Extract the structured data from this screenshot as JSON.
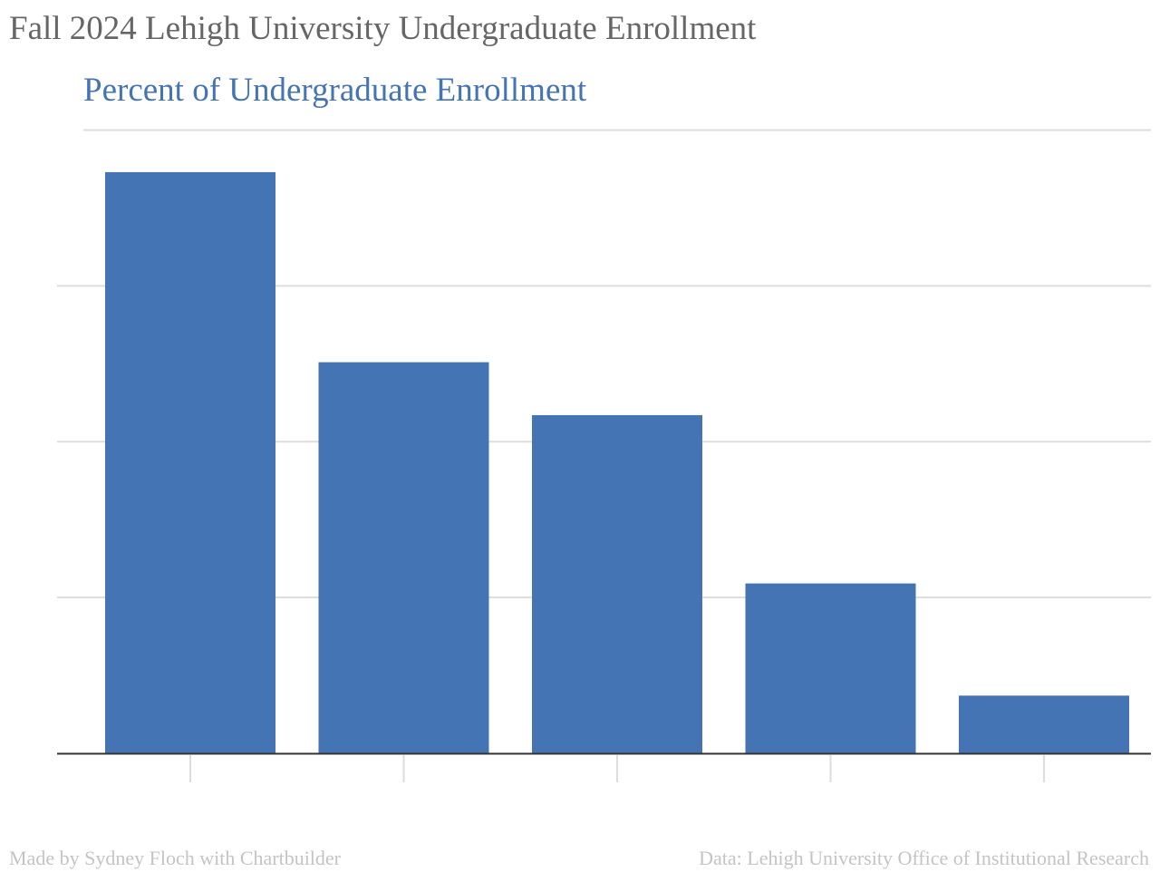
{
  "header": {
    "title": "Fall 2024 Lehigh University Undergraduate Enrollment"
  },
  "chart_data": {
    "type": "bar",
    "title": "Fall 2024 Lehigh University Undergraduate Enrollment",
    "subtitle": "Percent of Undergraduate Enrollment",
    "categories": [
      "",
      "",
      "",
      "",
      ""
    ],
    "values": [
      37.3,
      25.1,
      21.7,
      10.9,
      3.7
    ],
    "xlabel": "",
    "ylabel": "",
    "ylim": [
      0,
      40
    ],
    "grid": true,
    "bar_color": "#4474b4",
    "grid_color": "#dddddd",
    "axis_color": "#333333"
  },
  "footer": {
    "credit": "Made by Sydney Floch with Chartbuilder",
    "source": "Data: Lehigh University Office of Institutional Research"
  }
}
